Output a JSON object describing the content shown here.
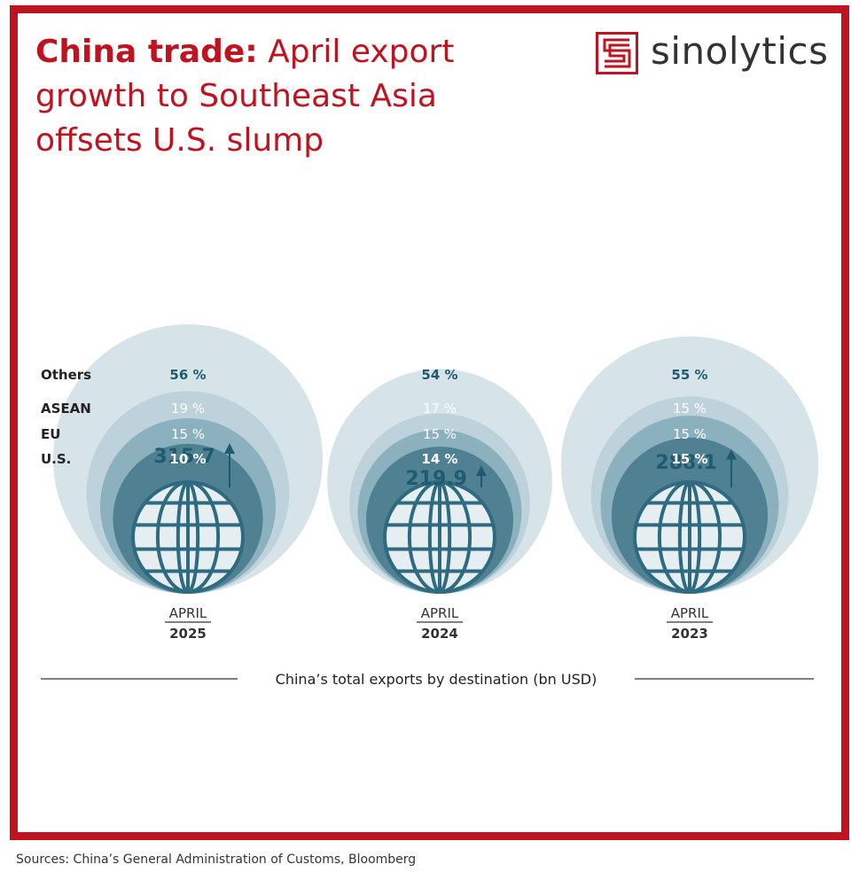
{
  "title": {
    "bold": "China trade:",
    "rest": " April export growth to Southeast Asia offsets U.S. slump"
  },
  "brand": {
    "name": "sinolytics",
    "color": "#c1121f"
  },
  "source": "Sources: China’s General Administration of Customs, Bloomberg",
  "colors": {
    "accent": "#c1121f",
    "others": "#d6e4ea",
    "asean": "#bdd2da",
    "eu": "#8bb0be",
    "us": "#4f8192",
    "globe": "#2e6b80",
    "label_dark": "#1f5b70"
  },
  "chart_data": {
    "type": "nested-circles",
    "xlabel": "China’s total exports by destination (bn USD)",
    "categories": [
      "Others",
      "ASEAN",
      "EU",
      "U.S."
    ],
    "periods": [
      {
        "month": "APRIL",
        "year": "2025",
        "total": "315.7",
        "total_value": 315.7,
        "shares": [
          "56 %",
          "19 %",
          "15 %",
          "10 %"
        ],
        "share_values": [
          56,
          19,
          15,
          10
        ]
      },
      {
        "month": "APRIL",
        "year": "2024",
        "total": "219.9",
        "total_value": 219.9,
        "shares": [
          "54 %",
          "17 %",
          "15 %",
          "14 %"
        ],
        "share_values": [
          54,
          17,
          15,
          14
        ]
      },
      {
        "month": "APRIL",
        "year": "2023",
        "total": "288.1",
        "total_value": 288.1,
        "shares": [
          "55 %",
          "15 %",
          "15 %",
          "15 %"
        ],
        "share_values": [
          55,
          15,
          15,
          15
        ]
      }
    ]
  }
}
